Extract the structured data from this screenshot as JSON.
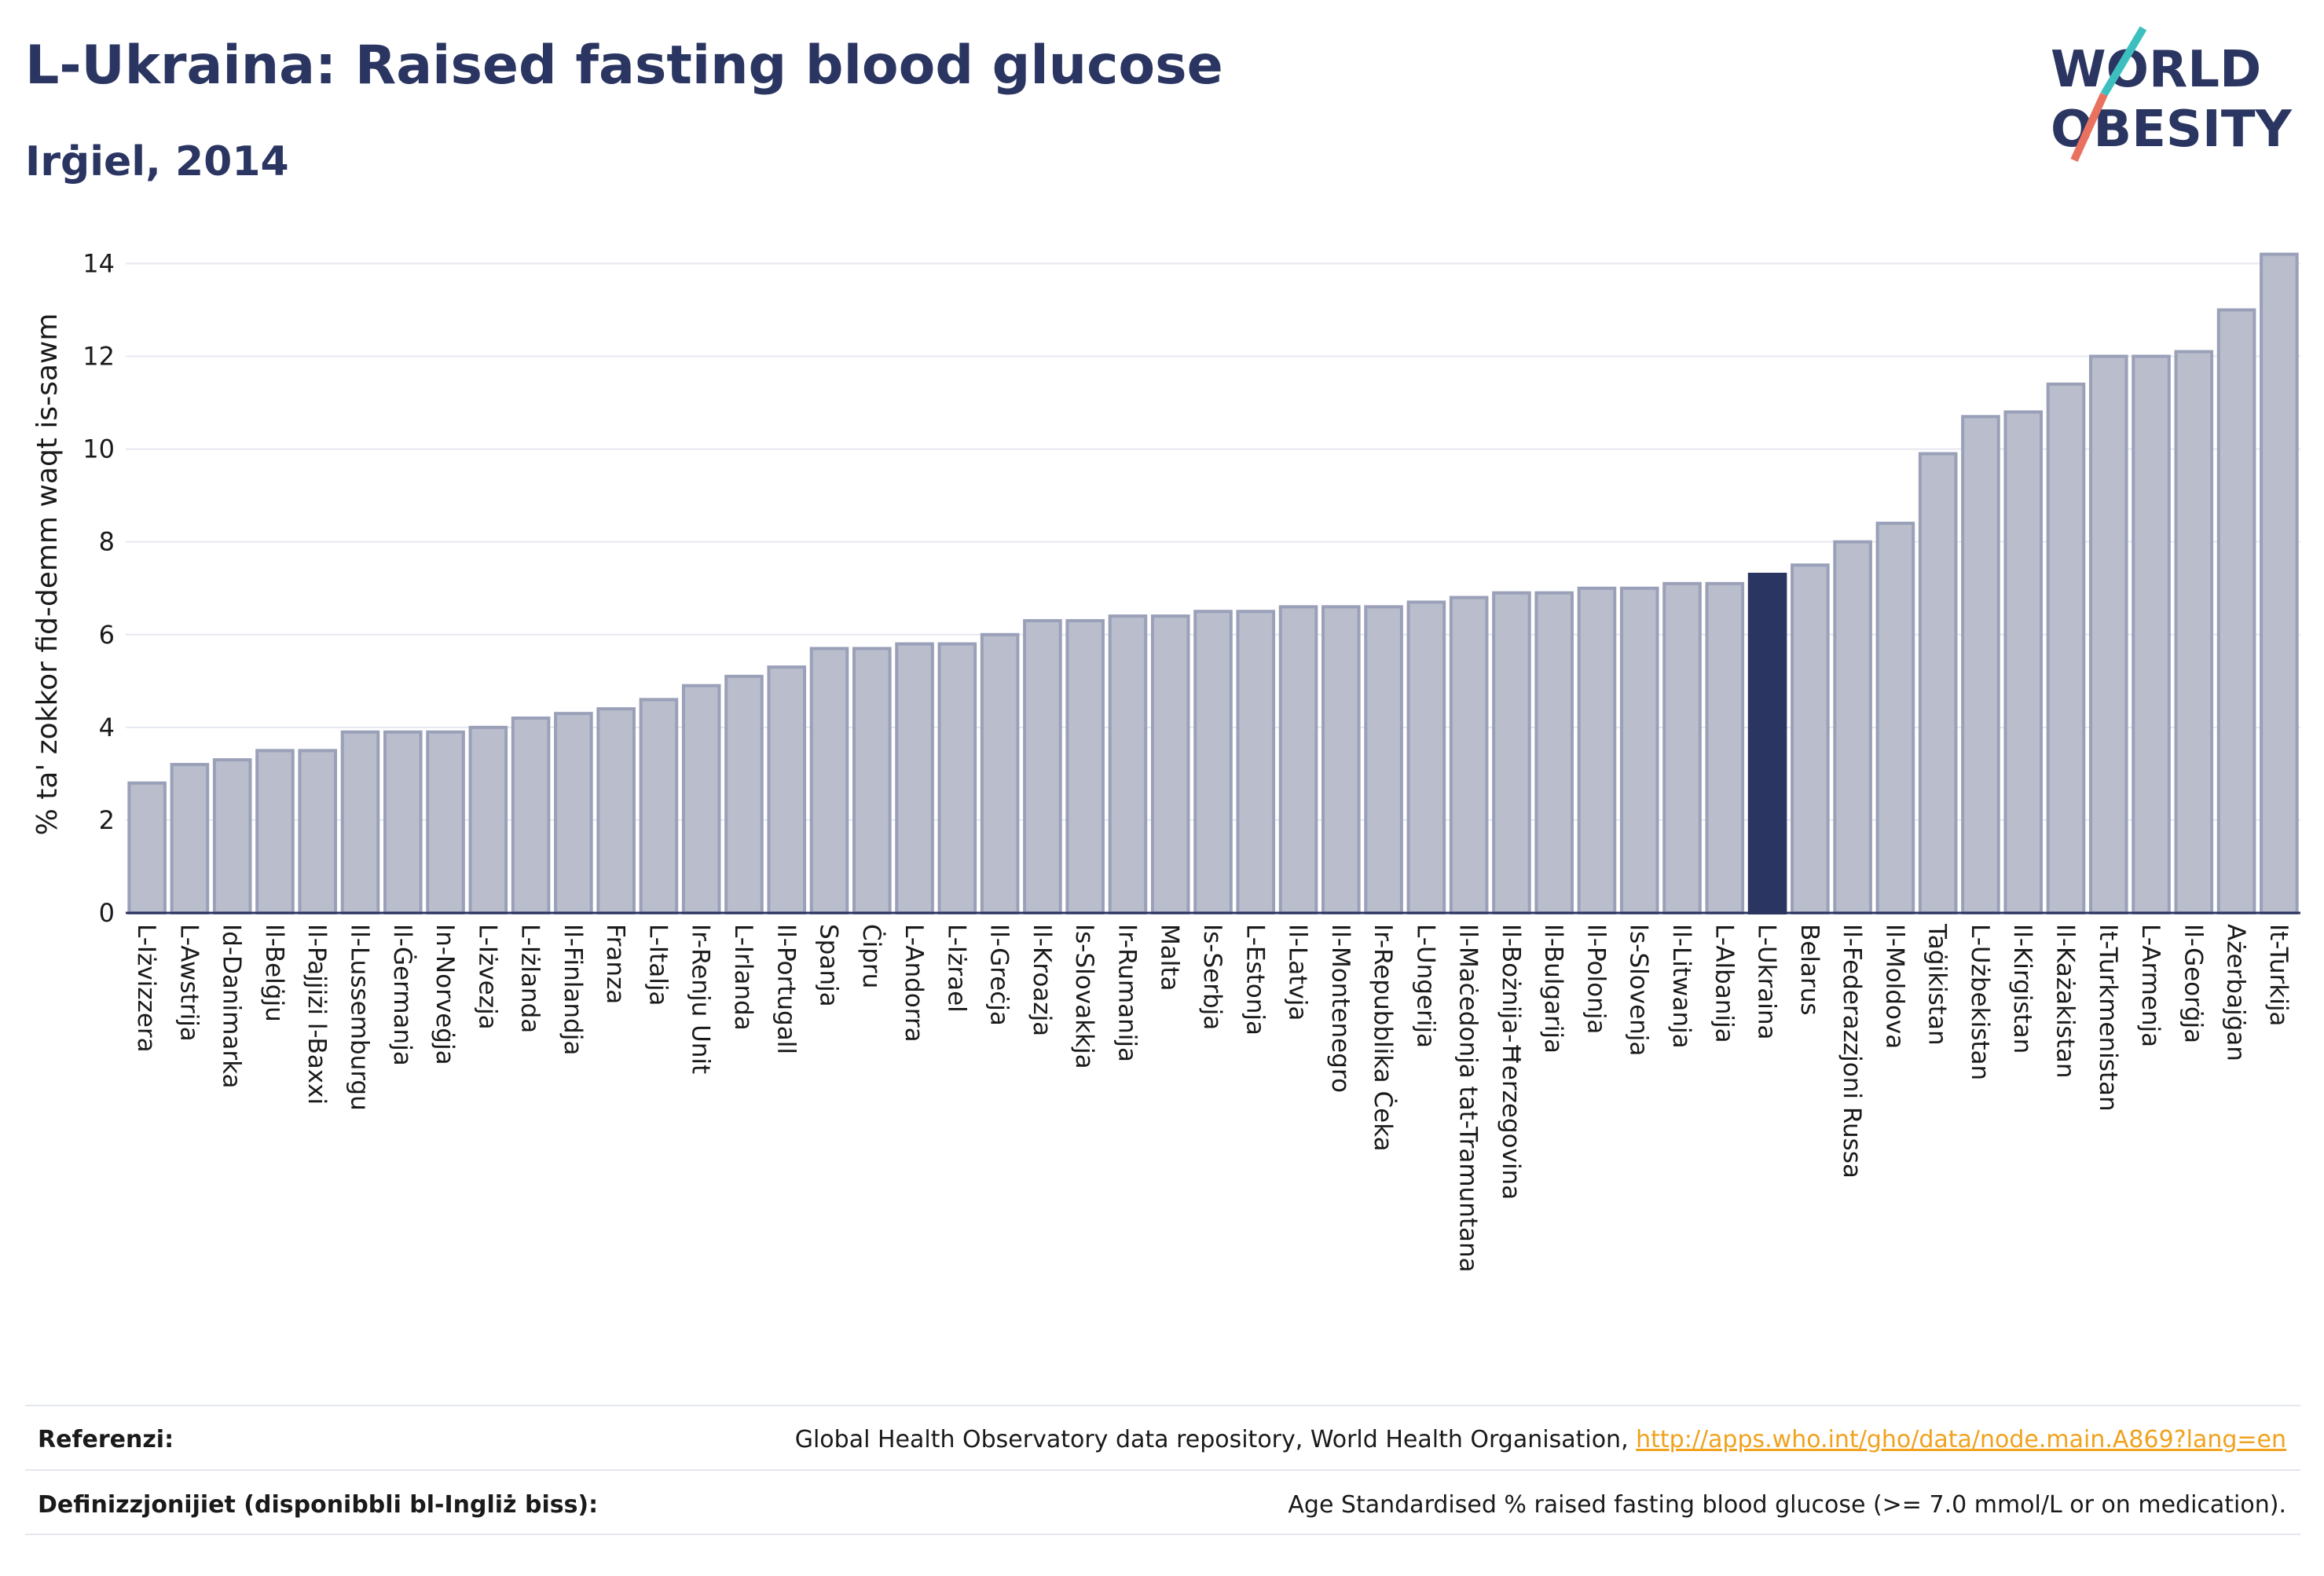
{
  "header": {
    "title": "L-Ukraina: Raised fasting blood glucose",
    "subtitle": "Irġiel, 2014"
  },
  "logo": {
    "line1": "WORLD",
    "line2": "OBESITY"
  },
  "colors": {
    "bar": "#b9bdcc",
    "bar_edge": "#9aa0b8",
    "highlight": "#2a3561",
    "accent_teal": "#3dbfc0",
    "accent_red": "#e8715f"
  },
  "chart_data": {
    "type": "bar",
    "ylabel": "% ta' zokkor fid-demm waqt is-sawm",
    "ylim": [
      0,
      14.6
    ],
    "yticks": [
      0,
      2,
      4,
      6,
      8,
      10,
      12,
      14
    ],
    "grid": true,
    "highlight": "L-Ukraina",
    "categories": [
      "L-Iżvizzera",
      "L-Awstrija",
      "Id-Danimarka",
      "Il-Belġju",
      "Il-Pajjiżi l-Baxxi",
      "Il-Lussemburgu",
      "Il-Ġermanja",
      "In-Norveġja",
      "L-Iżvezja",
      "L-Iżlanda",
      "Il-Finlandja",
      "Franza",
      "L-Italja",
      "Ir-Renju Unit",
      "L-Irlanda",
      "Il-Portugall",
      "Spanja",
      "Ċipru",
      "L-Andorra",
      "L-Iżrael",
      "Il-Greċja",
      "Il-Kroazja",
      "Is-Slovakkja",
      "Ir-Rumanija",
      "Malta",
      "Is-Serbja",
      "L-Estonja",
      "Il-Latvja",
      "Il-Montenegro",
      "Ir-Repubblika Ċeka",
      "L-Ungerija",
      "Il-Maċedonja tat-Tramuntana",
      "Il-Bożnija-Ħerzegovina",
      "Il-Bulgarija",
      "Il-Polonja",
      "Is-Slovenja",
      "Il-Litwanja",
      "L-Albanija",
      "L-Ukraina",
      "Belarus",
      "Il-Federazzjoni Russa",
      "Il-Moldova",
      "Taġikistan",
      "L-Użbekistan",
      "Il-Kirgistan",
      "Il-Każakistan",
      "It-Turkmenistan",
      "L-Armenja",
      "Il-Georġja",
      "Ażerbajġan",
      "It-Turkija"
    ],
    "values": [
      2.8,
      3.2,
      3.3,
      3.5,
      3.5,
      3.9,
      3.9,
      3.9,
      4.0,
      4.2,
      4.3,
      4.4,
      4.6,
      4.9,
      5.1,
      5.3,
      5.7,
      5.7,
      5.8,
      5.8,
      6.0,
      6.3,
      6.3,
      6.4,
      6.4,
      6.5,
      6.5,
      6.6,
      6.6,
      6.6,
      6.7,
      6.8,
      6.9,
      6.9,
      7.0,
      7.0,
      7.1,
      7.1,
      7.3,
      7.5,
      8.0,
      8.4,
      9.9,
      10.7,
      10.8,
      11.4,
      12.0,
      12.0,
      12.1,
      13.0,
      14.2
    ]
  },
  "footer": {
    "references_label": "Referenzi:",
    "references_text": "Global Health Observatory data repository, World Health Organisation, ",
    "references_link": "http://apps.who.int/gho/data/node.main.A869?lang=en",
    "definitions_label": "Definizzjonijiet (disponibbli bl-Ingliż biss):",
    "definitions_text": "Age Standardised % raised fasting blood glucose (>= 7.0 mmol/L or on medication)."
  }
}
